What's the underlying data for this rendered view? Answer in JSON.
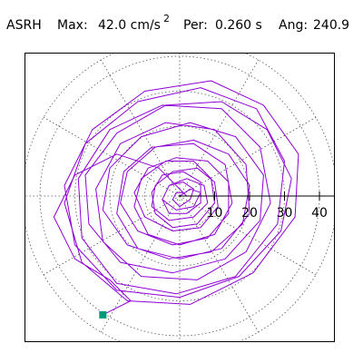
{
  "header": {
    "station": "ASRH",
    "max_label": "Max:",
    "max_value": "42.0 cm/s",
    "max_exponent": "2",
    "period_label": "Per:",
    "period_value": "0.260 s",
    "angle_label": "Ang:",
    "angle_value": "240.9"
  },
  "chart_data": {
    "type": "line",
    "title": "",
    "xlabel": "",
    "ylabel": "",
    "coordinate_system": "polar",
    "radial_range": [
      0,
      45
    ],
    "radial_ticks": [
      10,
      20,
      30,
      40
    ],
    "radial_tick_labels": [
      "10",
      "20",
      "30",
      "40"
    ],
    "grid": "dotted",
    "grid_angle_step_deg": 30,
    "trace_color": "#8f00d6",
    "end_marker_color": "#009977",
    "end_point": {
      "x": -22,
      "y": -34
    },
    "note_trace": "particle-motion trace; values estimated in cm/s^2",
    "series": [
      {
        "points": [
          [
            0,
            0
          ],
          [
            3,
            2
          ],
          [
            6,
            1
          ],
          [
            4,
            -3
          ],
          [
            -1,
            -4
          ],
          [
            -5,
            -1
          ],
          [
            -3,
            3
          ],
          [
            2,
            5
          ],
          [
            7,
            3
          ],
          [
            8,
            -2
          ],
          [
            4,
            -6
          ],
          [
            -3,
            -7
          ],
          [
            -8,
            -3
          ],
          [
            -7,
            3
          ],
          [
            -2,
            7
          ],
          [
            5,
            8
          ],
          [
            10,
            4
          ],
          [
            11,
            -3
          ],
          [
            6,
            -9
          ],
          [
            -2,
            -10
          ],
          [
            -10,
            -6
          ],
          [
            -13,
            1
          ],
          [
            -9,
            8
          ],
          [
            -1,
            11
          ],
          [
            8,
            10
          ],
          [
            14,
            4
          ],
          [
            14,
            -5
          ],
          [
            8,
            -12
          ],
          [
            -2,
            -14
          ],
          [
            -12,
            -10
          ],
          [
            -17,
            -2
          ],
          [
            -15,
            7
          ],
          [
            -7,
            14
          ],
          [
            4,
            16
          ],
          [
            14,
            12
          ],
          [
            20,
            3
          ],
          [
            18,
            -8
          ],
          [
            9,
            -16
          ],
          [
            -3,
            -18
          ],
          [
            -15,
            -14
          ],
          [
            -22,
            -4
          ],
          [
            -20,
            8
          ],
          [
            -11,
            17
          ],
          [
            3,
            21
          ],
          [
            16,
            17
          ],
          [
            24,
            6
          ],
          [
            23,
            -7
          ],
          [
            13,
            -18
          ],
          [
            -2,
            -22
          ],
          [
            -17,
            -19
          ],
          [
            -26,
            -8
          ],
          [
            -27,
            6
          ],
          [
            -18,
            18
          ],
          [
            -4,
            26
          ],
          [
            12,
            27
          ],
          [
            25,
            19
          ],
          [
            32,
            5
          ],
          [
            29,
            -10
          ],
          [
            17,
            -23
          ],
          [
            0,
            -29
          ],
          [
            -18,
            -27
          ],
          [
            -30,
            -14
          ],
          [
            -33,
            3
          ],
          [
            -25,
            19
          ],
          [
            -10,
            30
          ],
          [
            9,
            33
          ],
          [
            24,
            26
          ],
          [
            34,
            12
          ],
          [
            33,
            -6
          ],
          [
            21,
            -22
          ],
          [
            3,
            -31
          ],
          [
            -15,
            -30
          ],
          [
            -28,
            -19
          ],
          [
            -33,
            -2
          ],
          [
            -27,
            15
          ],
          [
            -12,
            27
          ],
          [
            6,
            31
          ],
          [
            22,
            25
          ],
          [
            30,
            10
          ],
          [
            28,
            -8
          ],
          [
            16,
            -23
          ],
          [
            -1,
            -28
          ],
          [
            -18,
            -25
          ],
          [
            -28,
            -12
          ],
          [
            -29,
            5
          ],
          [
            -20,
            19
          ],
          [
            -5,
            26
          ],
          [
            12,
            25
          ],
          [
            23,
            14
          ],
          [
            26,
            -2
          ],
          [
            19,
            -16
          ],
          [
            5,
            -24
          ],
          [
            -11,
            -23
          ],
          [
            -22,
            -13
          ],
          [
            -24,
            2
          ],
          [
            -17,
            15
          ],
          [
            -4,
            21
          ],
          [
            10,
            19
          ],
          [
            19,
            9
          ],
          [
            20,
            -5
          ],
          [
            12,
            -15
          ],
          [
            0,
            -18
          ],
          [
            -12,
            -15
          ],
          [
            -18,
            -5
          ],
          [
            -16,
            7
          ],
          [
            -8,
            14
          ],
          [
            4,
            15
          ],
          [
            13,
            9
          ],
          [
            15,
            -2
          ],
          [
            10,
            -11
          ],
          [
            0,
            -14
          ],
          [
            -9,
            -11
          ],
          [
            -13,
            -3
          ],
          [
            -11,
            5
          ],
          [
            -4,
            10
          ],
          [
            4,
            10
          ],
          [
            9,
            5
          ],
          [
            10,
            -2
          ],
          [
            5,
            -8
          ],
          [
            -2,
            -9
          ],
          [
            -7,
            -5
          ],
          [
            -8,
            1
          ],
          [
            -5,
            6
          ],
          [
            1,
            7
          ],
          [
            6,
            4
          ],
          [
            6,
            -2
          ],
          [
            2,
            -5
          ],
          [
            -3,
            -5
          ],
          [
            -5,
            -1
          ],
          [
            -3,
            3
          ],
          [
            1,
            4
          ],
          [
            4,
            2
          ],
          [
            3,
            -1
          ],
          [
            0,
            -3
          ],
          [
            -2,
            -1
          ],
          [
            -1,
            1
          ],
          [
            1,
            1
          ],
          [
            2,
            0
          ],
          [
            -6,
            8
          ],
          [
            -18,
            12
          ],
          [
            -30,
            6
          ],
          [
            -36,
            -6
          ],
          [
            -30,
            -18
          ],
          [
            -20,
            -24
          ],
          [
            -14,
            -30
          ],
          [
            -22,
            -34
          ]
        ]
      }
    ]
  }
}
